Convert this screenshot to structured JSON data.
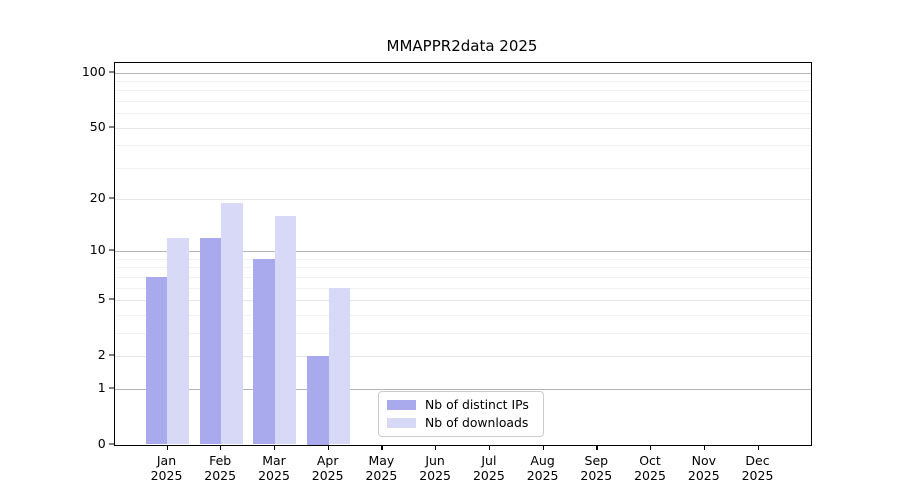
{
  "title": "MMAPPR2data 2025",
  "chart_data": {
    "type": "bar",
    "title": "MMAPPR2data 2025",
    "categories": [
      "Jan 2025",
      "Feb 2025",
      "Mar 2025",
      "Apr 2025",
      "May 2025",
      "Jun 2025",
      "Jul 2025",
      "Aug 2025",
      "Sep 2025",
      "Oct 2025",
      "Nov 2025",
      "Dec 2025"
    ],
    "series": [
      {
        "name": "Nb of distinct IPs",
        "color": "#a9aaee",
        "values": [
          7,
          12,
          9,
          2,
          0,
          0,
          0,
          0,
          0,
          0,
          0,
          0
        ]
      },
      {
        "name": "Nb of downloads",
        "color": "#d8d8f7",
        "values": [
          12,
          19,
          16,
          6,
          0,
          0,
          0,
          0,
          0,
          0,
          0,
          0
        ]
      }
    ],
    "xlabel": "",
    "ylabel": "",
    "yscale": "log1p",
    "ylim": [
      0,
      113.4
    ],
    "yticks": [
      0,
      1,
      2,
      5,
      10,
      20,
      50,
      100
    ],
    "ytick_labels": [
      "0",
      "1",
      "2",
      "5",
      "10",
      "20",
      "50",
      "100"
    ],
    "decade_gridlines": [
      1,
      10,
      100
    ],
    "minor_gridlines": [
      3,
      4,
      6,
      7,
      8,
      9,
      30,
      40,
      60,
      70,
      80,
      90
    ],
    "grid": true,
    "legend_position": "lower center"
  },
  "colors": {
    "background": "#ffffff",
    "bar_distinct_ips": "#a9aaee",
    "bar_downloads": "#d8d8f7",
    "grid_decade": "#b5b5b5",
    "grid_major": "#e5e5e5",
    "grid_minor": "#f2f2f2",
    "axis": "#000000",
    "legend_border": "#cccccc"
  }
}
